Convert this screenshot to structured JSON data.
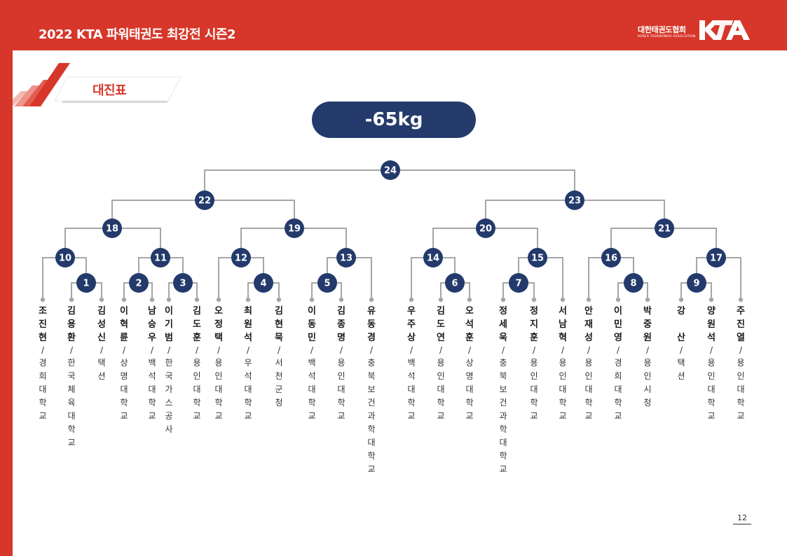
{
  "header": {
    "title": "2022 KTA 파워태권도 최강전 시즌2",
    "logo_korean": "대한태권도협회",
    "logo_english": "KOREA TAEKWONDO ASSOCIATION",
    "logo_mark": "KTA"
  },
  "section": {
    "label": "대진표"
  },
  "weight_class": "-65kg",
  "page_number": "12",
  "colors": {
    "brand_red": "#d6372a",
    "navy": "#233a6b",
    "line_gray": "#a6a6a6"
  },
  "matches": [
    "24",
    "22",
    "23",
    "18",
    "19",
    "20",
    "21",
    "10",
    "11",
    "12",
    "13",
    "14",
    "15",
    "16",
    "17",
    "1",
    "2",
    "3",
    "4",
    "5",
    "6",
    "7",
    "8",
    "9"
  ],
  "players": [
    {
      "name": "조진현",
      "affiliation": "경희대학교"
    },
    {
      "name": "김용환",
      "affiliation": "한국체육대학교"
    },
    {
      "name": "김성신",
      "affiliation": "택션"
    },
    {
      "name": "이혁륜",
      "affiliation": "상명대학교"
    },
    {
      "name": "남승우",
      "affiliation": "백석대학교"
    },
    {
      "name": "이기범",
      "affiliation": "한국가스공사"
    },
    {
      "name": "김도훈",
      "affiliation": "용인대학교"
    },
    {
      "name": "오정택",
      "affiliation": "용인대학교"
    },
    {
      "name": "최원석",
      "affiliation": "우석대학교"
    },
    {
      "name": "김현묵",
      "affiliation": "서천군청"
    },
    {
      "name": "이동민",
      "affiliation": "백석대학교"
    },
    {
      "name": "김종명",
      "affiliation": "용인대학교"
    },
    {
      "name": "유동경",
      "affiliation": "충북보건과학대학교"
    },
    {
      "name": "우주상",
      "affiliation": "백석대학교"
    },
    {
      "name": "김도연",
      "affiliation": "용인대학교"
    },
    {
      "name": "오석훈",
      "affiliation": "상명대학교"
    },
    {
      "name": "정세욱",
      "affiliation": "충북보건과학대학교"
    },
    {
      "name": "정지훈",
      "affiliation": "용인대학교"
    },
    {
      "name": "서남혁",
      "affiliation": "용인대학교"
    },
    {
      "name": "안재성",
      "affiliation": "용인대학교"
    },
    {
      "name": "이민영",
      "affiliation": "경희대학교"
    },
    {
      "name": "박중원",
      "affiliation": "용인시청"
    },
    {
      "name": "강 산",
      "affiliation": "택션"
    },
    {
      "name": "양원석",
      "affiliation": "용인대학교"
    },
    {
      "name": "주진열",
      "affiliation": "용인대학교"
    }
  ]
}
